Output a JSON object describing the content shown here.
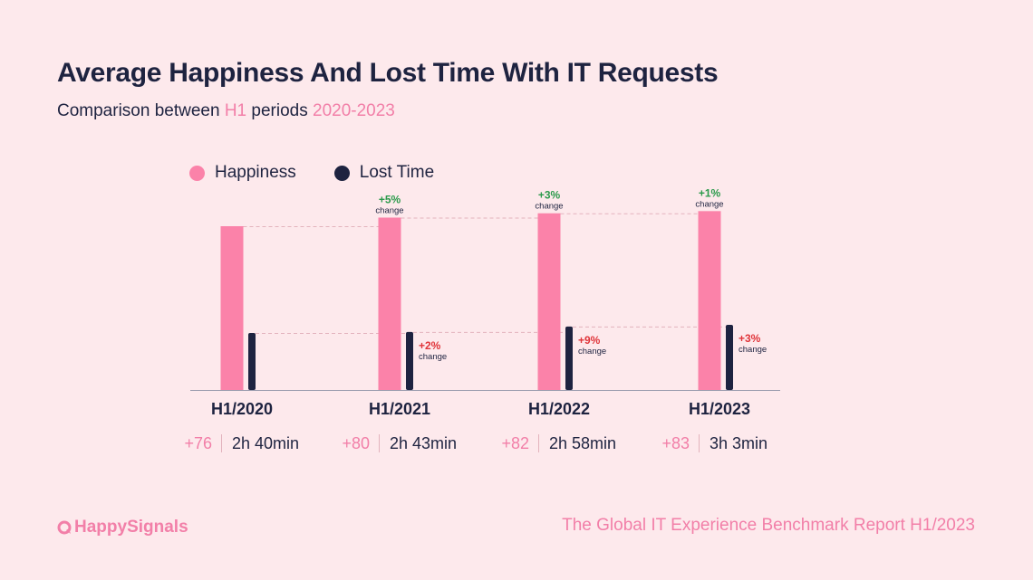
{
  "title": "Average Happiness And Lost Time With IT Requests",
  "subtitle": {
    "prefix": "Comparison between ",
    "highlight1": "H1",
    "middle": " periods ",
    "highlight2": "2020-2023"
  },
  "colors": {
    "happiness": "#fb82a9",
    "lost_time": "#1e2340",
    "positive_change": "#2b9a4b",
    "negative_change": "#e0353a",
    "accent": "#f27fa8"
  },
  "chart_data": {
    "type": "bar",
    "title": "Average Happiness And Lost Time With IT Requests",
    "categories": [
      "H1/2020",
      "H1/2021",
      "H1/2022",
      "H1/2023"
    ],
    "series": [
      {
        "name": "Happiness",
        "values": [
          76,
          80,
          82,
          83
        ],
        "value_labels": [
          "+76",
          "+80",
          "+82",
          "+83"
        ],
        "changes": [
          null,
          "+5%",
          "+3%",
          "+1%"
        ]
      },
      {
        "name": "Lost Time",
        "values_minutes": [
          160,
          163,
          178,
          183
        ],
        "value_labels": [
          "2h 40min",
          "2h 43min",
          "2h 58min",
          "3h 3min"
        ],
        "changes": [
          null,
          "+2%",
          "+9%",
          "+3%"
        ]
      }
    ],
    "change_word": "change",
    "legend": [
      "Happiness",
      "Lost Time"
    ],
    "legend_position": "top-left",
    "xlabel": "",
    "ylabel": ""
  },
  "logo": {
    "text": "HappySignals"
  },
  "footer": {
    "text": "The Global IT Experience Benchmark Report H1/2023"
  }
}
